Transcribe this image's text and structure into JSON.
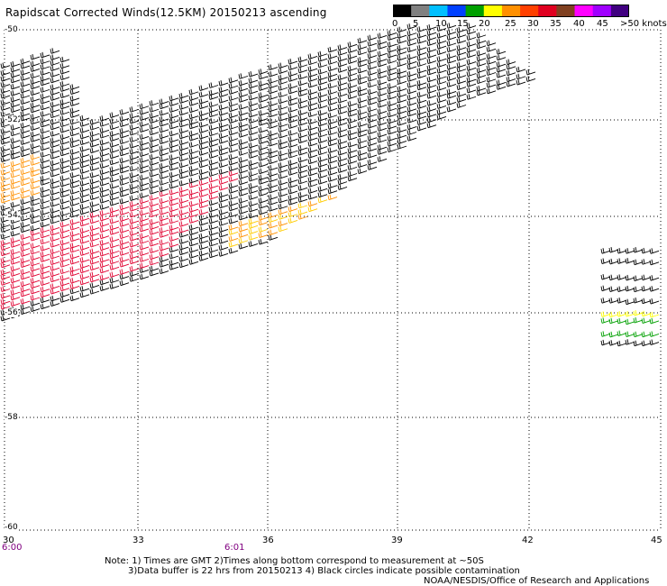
{
  "title": "Rapidscat Corrected Winds(12.5KM) 20150213 ascending",
  "colorbar": {
    "colors": [
      "#000000",
      "#808080",
      "#00bfff",
      "#0040ff",
      "#00a000",
      "#ffff00",
      "#ff9000",
      "#ff4000",
      "#e00020",
      "#804020",
      "#ff00ff",
      "#a000ff",
      "#400080"
    ],
    "labels": [
      "0",
      "5",
      "10",
      "15",
      "20",
      "25",
      "30",
      "35",
      "40",
      "45",
      ">50 knots"
    ]
  },
  "lat_labels": [
    "-50",
    "-52",
    "-54",
    "-56",
    "-58",
    "-60"
  ],
  "lon_labels": [
    "30",
    "33",
    "36",
    "39",
    "42",
    "45"
  ],
  "time_labels": [
    "6:00",
    "6:01"
  ],
  "notes": [
    "Note: 1) Times are GMT 2)Times along bottom correspond to measurement at ~50S",
    "3)Data buffer is 22 hrs from 20150213 4) Black circles indicate possible contamination",
    "NOAA/NESDIS/Office of Research and Applications"
  ]
}
